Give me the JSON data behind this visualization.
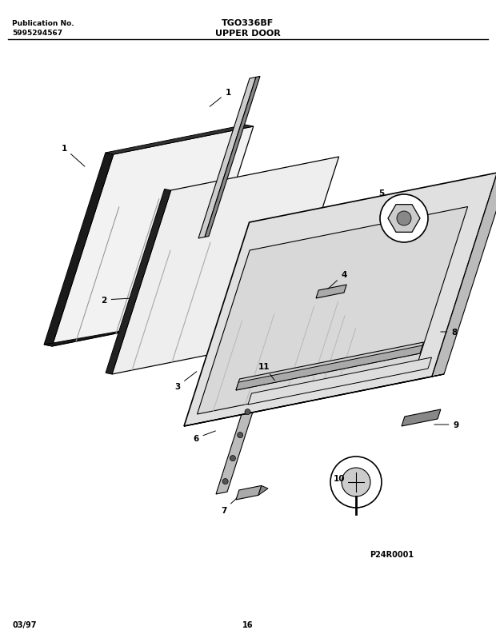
{
  "title_left_line1": "Publication No.",
  "title_left_line2": "5995294567",
  "title_center": "TGO336BF",
  "title_center2": "UPPER DOOR",
  "footer_left": "03/97",
  "footer_center": "16",
  "diagram_id": "P24R0001",
  "bg_color": "#ffffff",
  "line_color": "#000000",
  "skx": 0.3,
  "sky": 0.18
}
